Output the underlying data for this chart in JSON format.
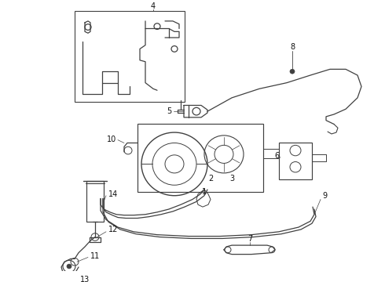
{
  "bg_color": "#ffffff",
  "line_color": "#404040",
  "lw": 0.9,
  "fig_w": 4.9,
  "fig_h": 3.6,
  "dpi": 100
}
